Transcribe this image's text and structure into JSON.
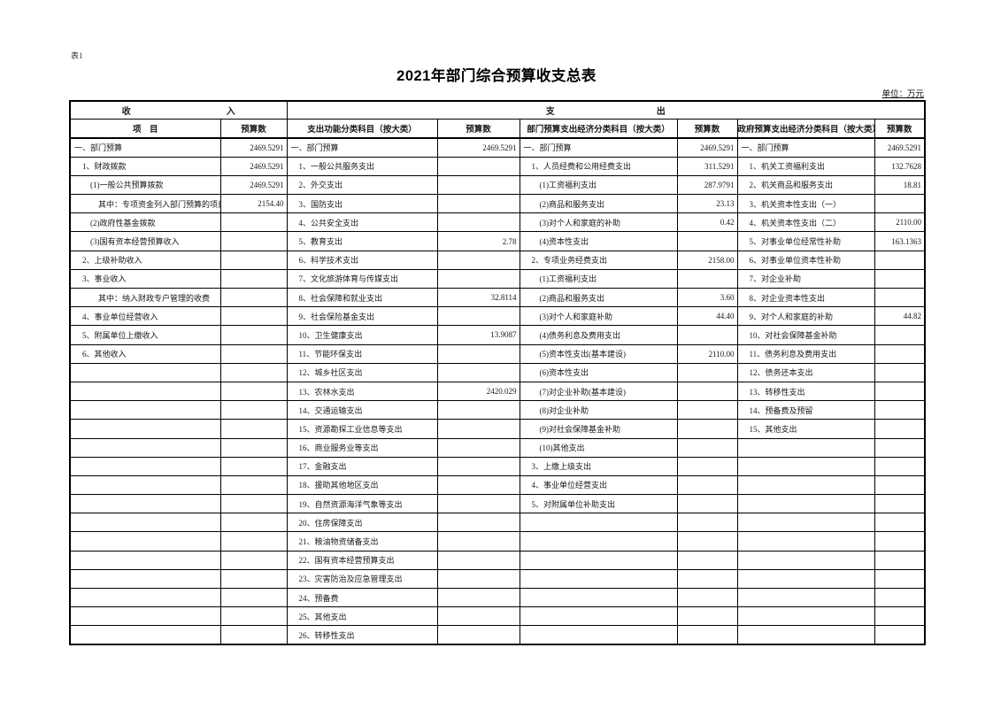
{
  "page": {
    "doc_label": "表1",
    "title": "2021年部门综合预算收支总表",
    "unit_note": "单位：万元"
  },
  "table": {
    "section_headers": {
      "income": [
        "收",
        "入"
      ],
      "expenditure": [
        "支",
        "出"
      ]
    },
    "column_headers": [
      "项　目",
      "预算数",
      "支出功能分类科目（按大类）",
      "预算数",
      "部门预算支出经济分类科目（按大类）",
      "预算数",
      "政府预算支出经济分类科目（按大类）",
      "预算数"
    ],
    "rows": [
      [
        {
          "t": "一、部门预算",
          "i": 0
        },
        "2469.5291",
        {
          "t": "一、部门预算",
          "i": 0
        },
        "2469.5291",
        {
          "t": "一、部门预算",
          "i": 0
        },
        "2469.5291",
        {
          "t": "一、部门预算",
          "i": 0
        },
        "2469.5291"
      ],
      [
        {
          "t": "1、财政拨款",
          "i": 1
        },
        "2469.5291",
        {
          "t": "1、一般公共服务支出",
          "i": 1
        },
        "",
        {
          "t": "1、人员经费和公用经费支出",
          "i": 1
        },
        "311.5291",
        {
          "t": "1、机关工资福利支出",
          "i": 1
        },
        "132.7628"
      ],
      [
        {
          "t": "(1)一般公共预算拨款",
          "i": 2
        },
        "2469.5291",
        {
          "t": "2、外交支出",
          "i": 1
        },
        "",
        {
          "t": "(1)工资福利支出",
          "i": 2
        },
        "287.9791",
        {
          "t": "2、机关商品和服务支出",
          "i": 1
        },
        "18.81"
      ],
      [
        {
          "t": "其中：专项资金列入部门预算的项目",
          "i": 3
        },
        "2154.40",
        {
          "t": "3、国防支出",
          "i": 1
        },
        "",
        {
          "t": "(2)商品和服务支出",
          "i": 2
        },
        "23.13",
        {
          "t": "3、机关资本性支出（一）",
          "i": 1
        },
        ""
      ],
      [
        {
          "t": "(2)政府性基金拨款",
          "i": 2
        },
        "",
        {
          "t": "4、公共安全支出",
          "i": 1
        },
        "",
        {
          "t": "(3)对个人和家庭的补助",
          "i": 2
        },
        "0.42",
        {
          "t": "4、机关资本性支出（二）",
          "i": 1
        },
        "2110.00"
      ],
      [
        {
          "t": "(3)国有资本经营预算收入",
          "i": 2
        },
        "",
        {
          "t": "5、教育支出",
          "i": 1
        },
        "2.78",
        {
          "t": "(4)资本性支出",
          "i": 2
        },
        "",
        {
          "t": "5、对事业单位经常性补助",
          "i": 1
        },
        "163.1363"
      ],
      [
        {
          "t": "2、上级补助收入",
          "i": 1
        },
        "",
        {
          "t": "6、科学技术支出",
          "i": 1
        },
        "",
        {
          "t": "2、专项业务经费支出",
          "i": 1
        },
        "2158.00",
        {
          "t": "6、对事业单位资本性补助",
          "i": 1
        },
        ""
      ],
      [
        {
          "t": "3、事业收入",
          "i": 1
        },
        "",
        {
          "t": "7、文化旅游体育与传媒支出",
          "i": 1
        },
        "",
        {
          "t": "(1)工资福利支出",
          "i": 2
        },
        "",
        {
          "t": "7、对企业补助",
          "i": 1
        },
        ""
      ],
      [
        {
          "t": "其中：纳入财政专户管理的收费",
          "i": 3
        },
        "",
        {
          "t": "8、社会保障和就业支出",
          "i": 1
        },
        "32.8114",
        {
          "t": "(2)商品和服务支出",
          "i": 2
        },
        "3.60",
        {
          "t": "8、对企业资本性支出",
          "i": 1
        },
        ""
      ],
      [
        {
          "t": "4、事业单位经营收入",
          "i": 1
        },
        "",
        {
          "t": "9、社会保险基金支出",
          "i": 1
        },
        "",
        {
          "t": "(3)对个人和家庭补助",
          "i": 2
        },
        "44.40",
        {
          "t": "9、对个人和家庭的补助",
          "i": 1
        },
        "44.82"
      ],
      [
        {
          "t": "5、附属单位上缴收入",
          "i": 1
        },
        "",
        {
          "t": "10、卫生健康支出",
          "i": 1
        },
        "13.9087",
        {
          "t": "(4)债务利息及费用支出",
          "i": 2
        },
        "",
        {
          "t": "10、对社会保障基金补助",
          "i": 1
        },
        ""
      ],
      [
        {
          "t": "6、其他收入",
          "i": 1
        },
        "",
        {
          "t": "11、节能环保支出",
          "i": 1
        },
        "",
        {
          "t": "(5)资本性支出(基本建设)",
          "i": 2
        },
        "2110.00",
        {
          "t": "11、债务利息及费用支出",
          "i": 1
        },
        ""
      ],
      [
        null,
        "",
        {
          "t": "12、城乡社区支出",
          "i": 1
        },
        "",
        {
          "t": "(6)资本性支出",
          "i": 2
        },
        "",
        {
          "t": "12、债务还本支出",
          "i": 1
        },
        ""
      ],
      [
        null,
        "",
        {
          "t": "13、农林水支出",
          "i": 1
        },
        "2420.029",
        {
          "t": "(7)对企业补助(基本建设)",
          "i": 2
        },
        "",
        {
          "t": "13、转移性支出",
          "i": 1
        },
        ""
      ],
      [
        null,
        "",
        {
          "t": "14、交通运输支出",
          "i": 1
        },
        "",
        {
          "t": "(8)对企业补助",
          "i": 2
        },
        "",
        {
          "t": "14、预备费及预留",
          "i": 1
        },
        ""
      ],
      [
        null,
        "",
        {
          "t": "15、资源勘探工业信息等支出",
          "i": 1
        },
        "",
        {
          "t": "(9)对社会保障基金补助",
          "i": 2
        },
        "",
        {
          "t": "15、其他支出",
          "i": 1
        },
        ""
      ],
      [
        null,
        "",
        {
          "t": "16、商业服务业等支出",
          "i": 1
        },
        "",
        {
          "t": "(10)其他支出",
          "i": 2
        },
        "",
        null,
        ""
      ],
      [
        null,
        "",
        {
          "t": "17、金融支出",
          "i": 1
        },
        "",
        {
          "t": "3、上缴上级支出",
          "i": 1
        },
        "",
        null,
        ""
      ],
      [
        null,
        "",
        {
          "t": "18、援助其他地区支出",
          "i": 1
        },
        "",
        {
          "t": "4、事业单位经营支出",
          "i": 1
        },
        "",
        null,
        ""
      ],
      [
        null,
        "",
        {
          "t": "19、自然资源海洋气象等支出",
          "i": 1
        },
        "",
        {
          "t": "5、对附属单位补助支出",
          "i": 1
        },
        "",
        null,
        ""
      ],
      [
        null,
        "",
        {
          "t": "20、住房保障支出",
          "i": 1
        },
        "",
        null,
        "",
        null,
        ""
      ],
      [
        null,
        "",
        {
          "t": "21、粮油物资储备支出",
          "i": 1
        },
        "",
        null,
        "",
        null,
        ""
      ],
      [
        null,
        "",
        {
          "t": "22、国有资本经营预算支出",
          "i": 1
        },
        "",
        null,
        "",
        null,
        ""
      ],
      [
        null,
        "",
        {
          "t": "23、灾害防治及应急管理支出",
          "i": 1
        },
        "",
        null,
        "",
        null,
        ""
      ],
      [
        null,
        "",
        {
          "t": "24、预备费",
          "i": 1
        },
        "",
        null,
        "",
        null,
        ""
      ],
      [
        null,
        "",
        {
          "t": "25、其他支出",
          "i": 1
        },
        "",
        null,
        "",
        null,
        ""
      ],
      [
        null,
        "",
        {
          "t": "26、转移性支出",
          "i": 1
        },
        "",
        null,
        "",
        null,
        ""
      ]
    ]
  }
}
